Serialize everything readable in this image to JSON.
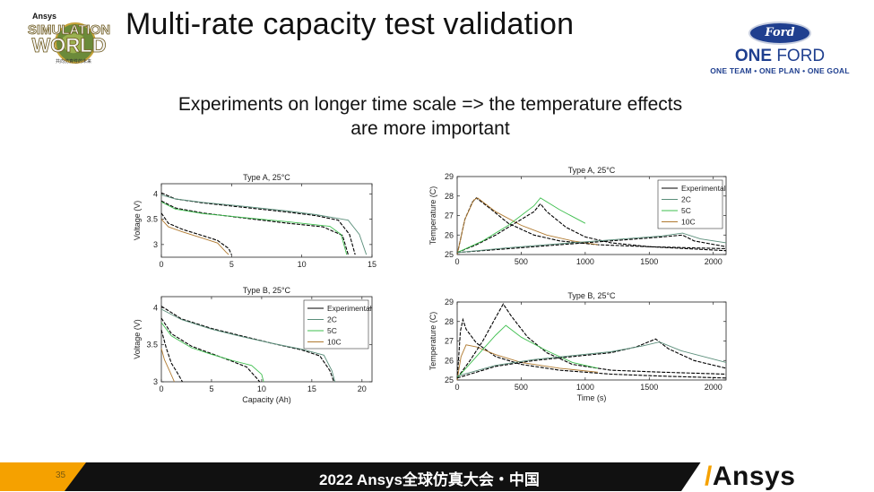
{
  "header": {
    "event_logo": {
      "brand": "Ansys",
      "line1": "SIMULATION",
      "line2": "WORLD",
      "tag": "共向仿真性的未来"
    },
    "title": "Multi-rate capacity test validation",
    "ford_logo": {
      "oval": "Ford",
      "one": "ONE",
      "ford": "FORD",
      "tagline": "ONE TEAM • ONE PLAN • ONE GOAL"
    }
  },
  "subtitle": [
    "Experiments on longer time scale => the temperature effects",
    "are more important"
  ],
  "colors": {
    "experimental": "#000000",
    "c2": "#5a8e7a",
    "c5": "#3fbf4f",
    "c10": "#b07a30",
    "accent": "#f5a100",
    "bar": "#111111"
  },
  "chart_data": [
    {
      "id": "voltage-a",
      "type": "line",
      "title": "Type A, 25°C",
      "xlabel": "",
      "ylabel": "Voltage (V)",
      "xlim": [
        0,
        15
      ],
      "ylim": [
        2.75,
        4.2
      ],
      "xticks": [
        0,
        5,
        10,
        15
      ],
      "yticks": [
        3,
        3.5,
        4
      ],
      "series": [
        {
          "key": "exp",
          "points": [
            [
              0,
              4.02
            ],
            [
              1,
              3.9
            ],
            [
              3,
              3.82
            ],
            [
              6,
              3.73
            ],
            [
              9,
              3.64
            ],
            [
              11,
              3.57
            ],
            [
              12.6,
              3.48
            ],
            [
              13.4,
              3.2
            ],
            [
              13.8,
              2.8
            ]
          ]
        },
        {
          "key": "c2",
          "points": [
            [
              0,
              3.98
            ],
            [
              1,
              3.9
            ],
            [
              3,
              3.83
            ],
            [
              6,
              3.75
            ],
            [
              9,
              3.66
            ],
            [
              11,
              3.59
            ],
            [
              13.3,
              3.48
            ],
            [
              14.1,
              3.2
            ],
            [
              14.6,
              2.8
            ]
          ]
        },
        {
          "key": "exp",
          "points": [
            [
              0,
              3.86
            ],
            [
              1,
              3.72
            ],
            [
              3,
              3.62
            ],
            [
              6,
              3.52
            ],
            [
              9,
              3.42
            ],
            [
              11.5,
              3.35
            ],
            [
              12.9,
              3.18
            ],
            [
              13.3,
              2.8
            ]
          ]
        },
        {
          "key": "c5",
          "points": [
            [
              0,
              3.84
            ],
            [
              1,
              3.7
            ],
            [
              3,
              3.61
            ],
            [
              6,
              3.53
            ],
            [
              9,
              3.45
            ],
            [
              12,
              3.36
            ],
            [
              12.8,
              3.2
            ],
            [
              13.2,
              2.8
            ]
          ]
        },
        {
          "key": "exp",
          "points": [
            [
              0,
              3.62
            ],
            [
              0.5,
              3.42
            ],
            [
              1.5,
              3.3
            ],
            [
              3,
              3.17
            ],
            [
              4,
              3.08
            ],
            [
              4.8,
              2.92
            ],
            [
              5,
              2.8
            ]
          ]
        },
        {
          "key": "c10",
          "points": [
            [
              0,
              3.5
            ],
            [
              0.5,
              3.35
            ],
            [
              1.5,
              3.25
            ],
            [
              3,
              3.12
            ],
            [
              4,
              3.03
            ],
            [
              4.6,
              2.85
            ],
            [
              4.8,
              2.8
            ]
          ]
        }
      ]
    },
    {
      "id": "voltage-b",
      "type": "line",
      "title": "Type B, 25°C",
      "xlabel": "Capacity (Ah)",
      "ylabel": "Voltage (V)",
      "xlim": [
        0,
        21
      ],
      "ylim": [
        3,
        4.15
      ],
      "xticks": [
        0,
        5,
        10,
        15,
        20
      ],
      "yticks": [
        3,
        3.5,
        4
      ],
      "legend": {
        "position": "top-right",
        "entries": [
          {
            "key": "exp",
            "label": "Experimental"
          },
          {
            "key": "c2",
            "label": "2C"
          },
          {
            "key": "c5",
            "label": "5C"
          },
          {
            "key": "c10",
            "label": "10C"
          }
        ]
      },
      "series": [
        {
          "key": "exp",
          "points": [
            [
              0,
              4.02
            ],
            [
              2,
              3.85
            ],
            [
              5,
              3.72
            ],
            [
              8,
              3.62
            ],
            [
              11,
              3.52
            ],
            [
              14,
              3.43
            ],
            [
              15.8,
              3.35
            ],
            [
              16.8,
              3.15
            ],
            [
              17.2,
              3.0
            ]
          ]
        },
        {
          "key": "c2",
          "points": [
            [
              0,
              3.98
            ],
            [
              2,
              3.84
            ],
            [
              5,
              3.71
            ],
            [
              8,
              3.61
            ],
            [
              11,
              3.52
            ],
            [
              14,
              3.44
            ],
            [
              16.2,
              3.36
            ],
            [
              17,
              3.15
            ],
            [
              17.3,
              3.0
            ]
          ]
        },
        {
          "key": "exp",
          "points": [
            [
              0,
              3.86
            ],
            [
              1,
              3.65
            ],
            [
              3,
              3.48
            ],
            [
              5,
              3.38
            ],
            [
              7,
              3.28
            ],
            [
              8.5,
              3.2
            ],
            [
              9.5,
              3.05
            ],
            [
              9.8,
              3.0
            ]
          ]
        },
        {
          "key": "c5",
          "points": [
            [
              0,
              3.8
            ],
            [
              1,
              3.62
            ],
            [
              3,
              3.46
            ],
            [
              5,
              3.37
            ],
            [
              7,
              3.29
            ],
            [
              9,
              3.22
            ],
            [
              10,
              3.1
            ],
            [
              10.2,
              3.0
            ]
          ]
        },
        {
          "key": "exp",
          "points": [
            [
              0,
              3.7
            ],
            [
              0.5,
              3.45
            ],
            [
              1,
              3.25
            ],
            [
              1.6,
              3.12
            ],
            [
              2.1,
              3.0
            ]
          ]
        },
        {
          "key": "c10",
          "points": [
            [
              0,
              3.45
            ],
            [
              0.3,
              3.3
            ],
            [
              0.8,
              3.15
            ],
            [
              1.3,
              3.0
            ]
          ]
        }
      ]
    },
    {
      "id": "temp-a",
      "type": "line",
      "title": "Type A, 25°C",
      "xlabel": "",
      "ylabel": "Temperature (C)",
      "xlim": [
        0,
        2100
      ],
      "ylim": [
        25,
        29
      ],
      "xticks": [
        0,
        500,
        1000,
        1500,
        2000
      ],
      "yticks": [
        25,
        26,
        27,
        28,
        29
      ],
      "legend": {
        "position": "top-right",
        "entries": [
          {
            "key": "exp",
            "label": "Experimental"
          },
          {
            "key": "c2",
            "label": "2C"
          },
          {
            "key": "c5",
            "label": "5C"
          },
          {
            "key": "c10",
            "label": "10C"
          }
        ]
      },
      "series": [
        {
          "key": "exp",
          "points": [
            [
              0,
              25
            ],
            [
              60,
              26.8
            ],
            [
              120,
              27.7
            ],
            [
              150,
              27.9
            ],
            [
              250,
              27.4
            ],
            [
              400,
              26.6
            ],
            [
              600,
              26.0
            ],
            [
              800,
              25.7
            ],
            [
              1100,
              25.5
            ],
            [
              1500,
              25.4
            ],
            [
              2100,
              25.2
            ]
          ]
        },
        {
          "key": "c10",
          "points": [
            [
              0,
              25
            ],
            [
              60,
              26.8
            ],
            [
              130,
              27.8
            ],
            [
              160,
              27.9
            ],
            [
              300,
              27.2
            ],
            [
              500,
              26.5
            ],
            [
              700,
              26.0
            ],
            [
              900,
              25.7
            ],
            [
              1100,
              25.5
            ]
          ]
        },
        {
          "key": "exp",
          "points": [
            [
              0,
              25.1
            ],
            [
              150,
              25.5
            ],
            [
              300,
              26.0
            ],
            [
              450,
              26.6
            ],
            [
              600,
              27.2
            ],
            [
              650,
              27.6
            ],
            [
              700,
              27.2
            ],
            [
              850,
              26.4
            ],
            [
              1000,
              25.9
            ],
            [
              1200,
              25.6
            ],
            [
              1500,
              25.4
            ],
            [
              2100,
              25.3
            ]
          ]
        },
        {
          "key": "c5",
          "points": [
            [
              0,
              25.1
            ],
            [
              200,
              25.7
            ],
            [
              400,
              26.5
            ],
            [
              600,
              27.5
            ],
            [
              650,
              27.9
            ],
            [
              800,
              27.3
            ],
            [
              1000,
              26.6
            ]
          ]
        },
        {
          "key": "exp",
          "points": [
            [
              0,
              25.1
            ],
            [
              400,
              25.3
            ],
            [
              800,
              25.5
            ],
            [
              1200,
              25.7
            ],
            [
              1600,
              25.9
            ],
            [
              1760,
              26.0
            ],
            [
              1850,
              25.7
            ],
            [
              2100,
              25.4
            ]
          ]
        },
        {
          "key": "c2",
          "points": [
            [
              0,
              25.1
            ],
            [
              400,
              25.35
            ],
            [
              800,
              25.55
            ],
            [
              1200,
              25.75
            ],
            [
              1600,
              25.95
            ],
            [
              1760,
              26.1
            ],
            [
              1900,
              25.8
            ],
            [
              2100,
              25.6
            ]
          ]
        }
      ]
    },
    {
      "id": "temp-b",
      "type": "line",
      "title": "Type B, 25°C",
      "xlabel": "Time (s)",
      "ylabel": "Temperature (C)",
      "xlim": [
        0,
        2100
      ],
      "ylim": [
        25,
        29
      ],
      "xticks": [
        0,
        500,
        1000,
        1500,
        2000
      ],
      "yticks": [
        25,
        26,
        27,
        28,
        29
      ],
      "series": [
        {
          "key": "exp",
          "points": [
            [
              0,
              25
            ],
            [
              25,
              27.5
            ],
            [
              45,
              28.1
            ],
            [
              70,
              27.6
            ],
            [
              150,
              26.9
            ],
            [
              300,
              26.2
            ],
            [
              500,
              25.8
            ],
            [
              800,
              25.5
            ],
            [
              1200,
              25.3
            ],
            [
              1600,
              25.2
            ],
            [
              2100,
              25.1
            ]
          ]
        },
        {
          "key": "c10",
          "points": [
            [
              0,
              25
            ],
            [
              30,
              26.2
            ],
            [
              70,
              26.8
            ],
            [
              150,
              26.7
            ],
            [
              300,
              26.3
            ],
            [
              500,
              25.9
            ],
            [
              800,
              25.6
            ],
            [
              1100,
              25.4
            ]
          ]
        },
        {
          "key": "exp",
          "points": [
            [
              0,
              25.1
            ],
            [
              100,
              26.0
            ],
            [
              200,
              27.0
            ],
            [
              300,
              28.2
            ],
            [
              360,
              28.9
            ],
            [
              420,
              28.3
            ],
            [
              550,
              27.2
            ],
            [
              700,
              26.4
            ],
            [
              900,
              25.8
            ],
            [
              1200,
              25.5
            ],
            [
              1600,
              25.4
            ],
            [
              2100,
              25.3
            ]
          ]
        },
        {
          "key": "c5",
          "points": [
            [
              0,
              25.1
            ],
            [
              150,
              26.2
            ],
            [
              300,
              27.3
            ],
            [
              380,
              27.8
            ],
            [
              500,
              27.2
            ],
            [
              700,
              26.5
            ],
            [
              900,
              25.9
            ],
            [
              1100,
              25.6
            ]
          ]
        },
        {
          "key": "exp",
          "points": [
            [
              0,
              25.1
            ],
            [
              300,
              25.7
            ],
            [
              600,
              26.0
            ],
            [
              900,
              26.2
            ],
            [
              1200,
              26.4
            ],
            [
              1400,
              26.7
            ],
            [
              1550,
              27.1
            ],
            [
              1650,
              26.6
            ],
            [
              1850,
              26.0
            ],
            [
              2100,
              25.6
            ]
          ]
        },
        {
          "key": "c2",
          "points": [
            [
              0,
              25.2
            ],
            [
              300,
              25.75
            ],
            [
              600,
              26.05
            ],
            [
              900,
              26.25
            ],
            [
              1200,
              26.45
            ],
            [
              1450,
              26.75
            ],
            [
              1580,
              26.95
            ],
            [
              1750,
              26.5
            ],
            [
              2100,
              25.9
            ]
          ]
        }
      ]
    }
  ],
  "footer": {
    "page_number": "35",
    "event": "2022 Ansys全球仿真大会・中国",
    "brand": "Ansys"
  }
}
